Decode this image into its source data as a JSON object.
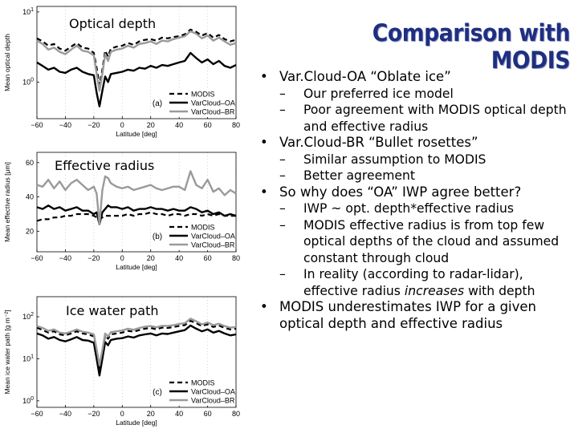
{
  "slide": {
    "title": "Comparison with MODIS",
    "bullets": [
      {
        "text": "Var.Cloud-OA “Oblate ice”",
        "sub": [
          {
            "text": "Our preferred ice model"
          },
          {
            "text": "Poor agreement with MODIS optical depth and effective radius"
          }
        ]
      },
      {
        "text": "Var.Cloud-BR “Bullet rosettes”",
        "sub": [
          {
            "text": "Similar assumption to MODIS"
          },
          {
            "text": "Better agreement"
          }
        ]
      },
      {
        "text": "So why does “OA” IWP agree better?",
        "sub": [
          {
            "text": "IWP ~ opt. depth*effective radius"
          },
          {
            "text": "MODIS effective radius is from top few optical depths of the cloud and assumed constant through cloud"
          },
          {
            "pre": "In reality (according to radar-lidar), effective radius ",
            "em": "increases",
            "post": " with depth"
          }
        ]
      },
      {
        "text": "MODIS underestimates IWP for a given optical depth and effective radius",
        "sub": []
      }
    ]
  },
  "chart_data": [
    {
      "type": "line",
      "label": "Optical depth",
      "panel_tag": "(a)",
      "xlabel": "Latitude [deg]",
      "ylabel": "Mean optical depth",
      "log_y": true,
      "ylim": [
        0.3,
        12
      ],
      "xlim": [
        -60,
        80
      ],
      "xticks": [
        -60,
        -40,
        -20,
        0,
        20,
        40,
        60,
        80
      ],
      "yticks": [
        {
          "v": 10,
          "base": "10",
          "exp": "1"
        },
        {
          "v": 1,
          "base": "10",
          "exp": "0"
        }
      ],
      "x": [
        -60,
        -56,
        -52,
        -48,
        -44,
        -40,
        -36,
        -32,
        -28,
        -24,
        -20,
        -18,
        -16,
        -14,
        -12,
        -10,
        -8,
        -4,
        0,
        4,
        8,
        12,
        16,
        20,
        24,
        28,
        32,
        36,
        40,
        44,
        48,
        52,
        56,
        60,
        64,
        68,
        72,
        76,
        80
      ],
      "series": [
        {
          "name": "MODIS",
          "style": "dash",
          "values": [
            4.2,
            3.8,
            3.3,
            3.5,
            3.0,
            2.8,
            3.2,
            3.6,
            3.1,
            3.0,
            2.6,
            1.6,
            0.9,
            1.5,
            2.8,
            2.3,
            3.0,
            3.2,
            3.3,
            3.6,
            3.4,
            3.8,
            4.0,
            4.1,
            3.9,
            4.3,
            4.2,
            4.4,
            4.5,
            4.8,
            5.6,
            5.2,
            4.6,
            5.0,
            4.3,
            4.7,
            4.1,
            3.8,
            4.0
          ]
        },
        {
          "name": "VarCloud–OA",
          "style": "solid-black",
          "values": [
            1.9,
            1.7,
            1.5,
            1.6,
            1.4,
            1.35,
            1.5,
            1.6,
            1.4,
            1.3,
            1.25,
            0.7,
            0.45,
            0.75,
            1.2,
            1.0,
            1.3,
            1.35,
            1.4,
            1.5,
            1.45,
            1.6,
            1.55,
            1.7,
            1.6,
            1.75,
            1.7,
            1.8,
            1.9,
            2.0,
            2.6,
            2.2,
            1.9,
            2.1,
            1.8,
            2.0,
            1.7,
            1.6,
            1.75
          ]
        },
        {
          "name": "VarCloud–BR",
          "style": "solid-gray",
          "values": [
            3.9,
            3.5,
            2.9,
            3.1,
            2.7,
            2.5,
            2.9,
            3.3,
            2.8,
            2.7,
            2.4,
            1.3,
            0.75,
            1.3,
            2.5,
            2.0,
            2.7,
            2.9,
            3.0,
            3.3,
            3.1,
            3.5,
            3.6,
            3.8,
            3.5,
            3.9,
            3.8,
            4.1,
            4.3,
            4.5,
            5.3,
            4.9,
            4.2,
            4.6,
            3.9,
            4.3,
            3.8,
            3.4,
            3.6
          ]
        }
      ]
    },
    {
      "type": "line",
      "label": "Effective radius",
      "panel_tag": "(b)",
      "xlabel": "Latitude [deg]",
      "ylabel": "Mean effective radius [μm]",
      "log_y": false,
      "ylim": [
        8,
        66
      ],
      "xlim": [
        -60,
        80
      ],
      "xticks": [
        -60,
        -40,
        -20,
        0,
        20,
        40,
        60,
        80
      ],
      "yticks": [
        {
          "v": 20,
          "base": "20"
        },
        {
          "v": 40,
          "base": "40"
        },
        {
          "v": 60,
          "base": "60"
        }
      ],
      "x": [
        -60,
        -56,
        -52,
        -48,
        -44,
        -40,
        -36,
        -32,
        -28,
        -24,
        -20,
        -18,
        -16,
        -14,
        -12,
        -10,
        -8,
        -4,
        0,
        4,
        8,
        12,
        16,
        20,
        24,
        28,
        32,
        36,
        40,
        44,
        48,
        52,
        56,
        60,
        64,
        68,
        72,
        76,
        80
      ],
      "series": [
        {
          "name": "MODIS",
          "style": "dash",
          "values": [
            26,
            27,
            27,
            28,
            28,
            29,
            29,
            30,
            30,
            30,
            29,
            28,
            27,
            28,
            29,
            29,
            29,
            29,
            29,
            30,
            29,
            30,
            30,
            31,
            30,
            30,
            29,
            30,
            30,
            29,
            30,
            30,
            29,
            30,
            29,
            30,
            29,
            29,
            29
          ]
        },
        {
          "name": "VarCloud–OA",
          "style": "solid-black",
          "values": [
            34,
            33,
            35,
            33,
            34,
            32,
            33,
            34,
            32,
            32,
            30,
            31,
            24,
            31,
            33,
            35,
            34,
            34,
            33,
            34,
            32,
            33,
            33,
            34,
            33,
            33,
            32,
            33,
            32,
            32,
            34,
            33,
            31,
            32,
            30,
            31,
            29,
            30,
            29
          ]
        },
        {
          "name": "VarCloud–BR",
          "style": "solid-gray",
          "values": [
            47,
            46,
            50,
            45,
            49,
            44,
            48,
            50,
            47,
            44,
            46,
            42,
            24,
            44,
            52,
            51,
            48,
            46,
            45,
            46,
            44,
            45,
            46,
            47,
            45,
            44,
            45,
            46,
            46,
            44,
            55,
            47,
            45,
            50,
            43,
            45,
            41,
            44,
            42
          ]
        }
      ]
    },
    {
      "type": "line",
      "label": "Ice water path",
      "panel_tag": "(c)",
      "xlabel": "Latitude [deg]",
      "ylabel": "Mean ice water path [g m⁻²]",
      "log_y": true,
      "ylim": [
        0.7,
        300
      ],
      "xlim": [
        -60,
        80
      ],
      "xticks": [
        -60,
        -40,
        -20,
        0,
        20,
        40,
        60,
        80
      ],
      "yticks": [
        {
          "v": 100,
          "base": "10",
          "exp": "2"
        },
        {
          "v": 10,
          "base": "10",
          "exp": "1"
        },
        {
          "v": 1,
          "base": "10",
          "exp": "0"
        }
      ],
      "x": [
        -60,
        -56,
        -52,
        -48,
        -44,
        -40,
        -36,
        -32,
        -28,
        -24,
        -20,
        -18,
        -16,
        -14,
        -12,
        -10,
        -8,
        -4,
        0,
        4,
        8,
        12,
        16,
        20,
        24,
        28,
        32,
        36,
        40,
        44,
        48,
        52,
        56,
        60,
        64,
        68,
        72,
        76,
        80
      ],
      "series": [
        {
          "name": "MODIS",
          "style": "dash",
          "values": [
            55,
            48,
            42,
            45,
            38,
            36,
            40,
            45,
            40,
            38,
            34,
            15,
            6,
            14,
            36,
            30,
            38,
            40,
            42,
            46,
            44,
            48,
            52,
            54,
            50,
            55,
            54,
            57,
            60,
            63,
            80,
            70,
            60,
            66,
            57,
            62,
            54,
            50,
            52
          ]
        },
        {
          "name": "VarCloud–OA",
          "style": "solid-black",
          "values": [
            40,
            36,
            30,
            33,
            28,
            26,
            29,
            33,
            28,
            27,
            24,
            10,
            4,
            10,
            25,
            21,
            28,
            30,
            31,
            34,
            32,
            36,
            38,
            40,
            36,
            40,
            39,
            42,
            45,
            48,
            62,
            52,
            45,
            50,
            42,
            46,
            40,
            36,
            38
          ]
        },
        {
          "name": "VarCloud–BR",
          "style": "solid-gray",
          "values": [
            60,
            54,
            46,
            50,
            42,
            40,
            44,
            50,
            44,
            42,
            38,
            17,
            7,
            16,
            40,
            34,
            43,
            45,
            47,
            52,
            49,
            54,
            58,
            60,
            56,
            61,
            60,
            63,
            67,
            70,
            90,
            78,
            66,
            73,
            63,
            68,
            60,
            55,
            57
          ]
        }
      ]
    }
  ]
}
